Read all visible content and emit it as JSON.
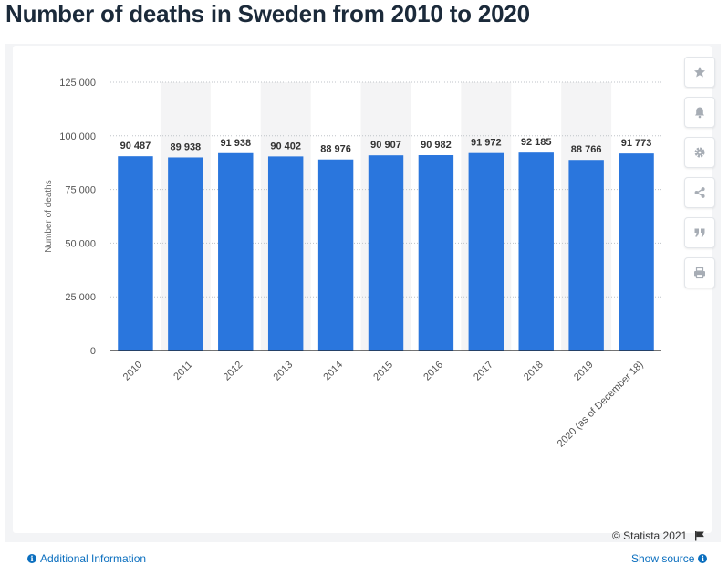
{
  "title": "Number of deaths in Sweden from 2010 to 2020",
  "toolbar": {
    "icons": [
      "star-icon",
      "bell-icon",
      "gear-icon",
      "share-icon",
      "quote-icon",
      "print-icon"
    ]
  },
  "footer": {
    "credit": "© Statista 2021",
    "additional_info": "Additional Information",
    "show_source": "Show source"
  },
  "colors": {
    "bar": "#2a76dd",
    "stripe": "#f4f4f5",
    "link": "#0b6fbf"
  },
  "chart_data": {
    "type": "bar",
    "title": "",
    "xlabel": "",
    "ylabel": "Number of deaths",
    "categories": [
      "2010",
      "2011",
      "2012",
      "2013",
      "2014",
      "2015",
      "2016",
      "2017",
      "2018",
      "2019",
      "2020 (as of December 18)"
    ],
    "values": [
      90487,
      89938,
      91938,
      90402,
      88976,
      90907,
      90982,
      91972,
      92185,
      88766,
      91773
    ],
    "value_labels": [
      "90 487",
      "89 938",
      "91 938",
      "90 402",
      "88 976",
      "90 907",
      "90 982",
      "91 972",
      "92 185",
      "88 766",
      "91 773"
    ],
    "yticks": [
      0,
      25000,
      50000,
      75000,
      100000,
      125000
    ],
    "ytick_labels": [
      "0",
      "25 000",
      "50 000",
      "75 000",
      "100 000",
      "125 000"
    ],
    "ylim": [
      0,
      125000
    ],
    "grid": true
  }
}
